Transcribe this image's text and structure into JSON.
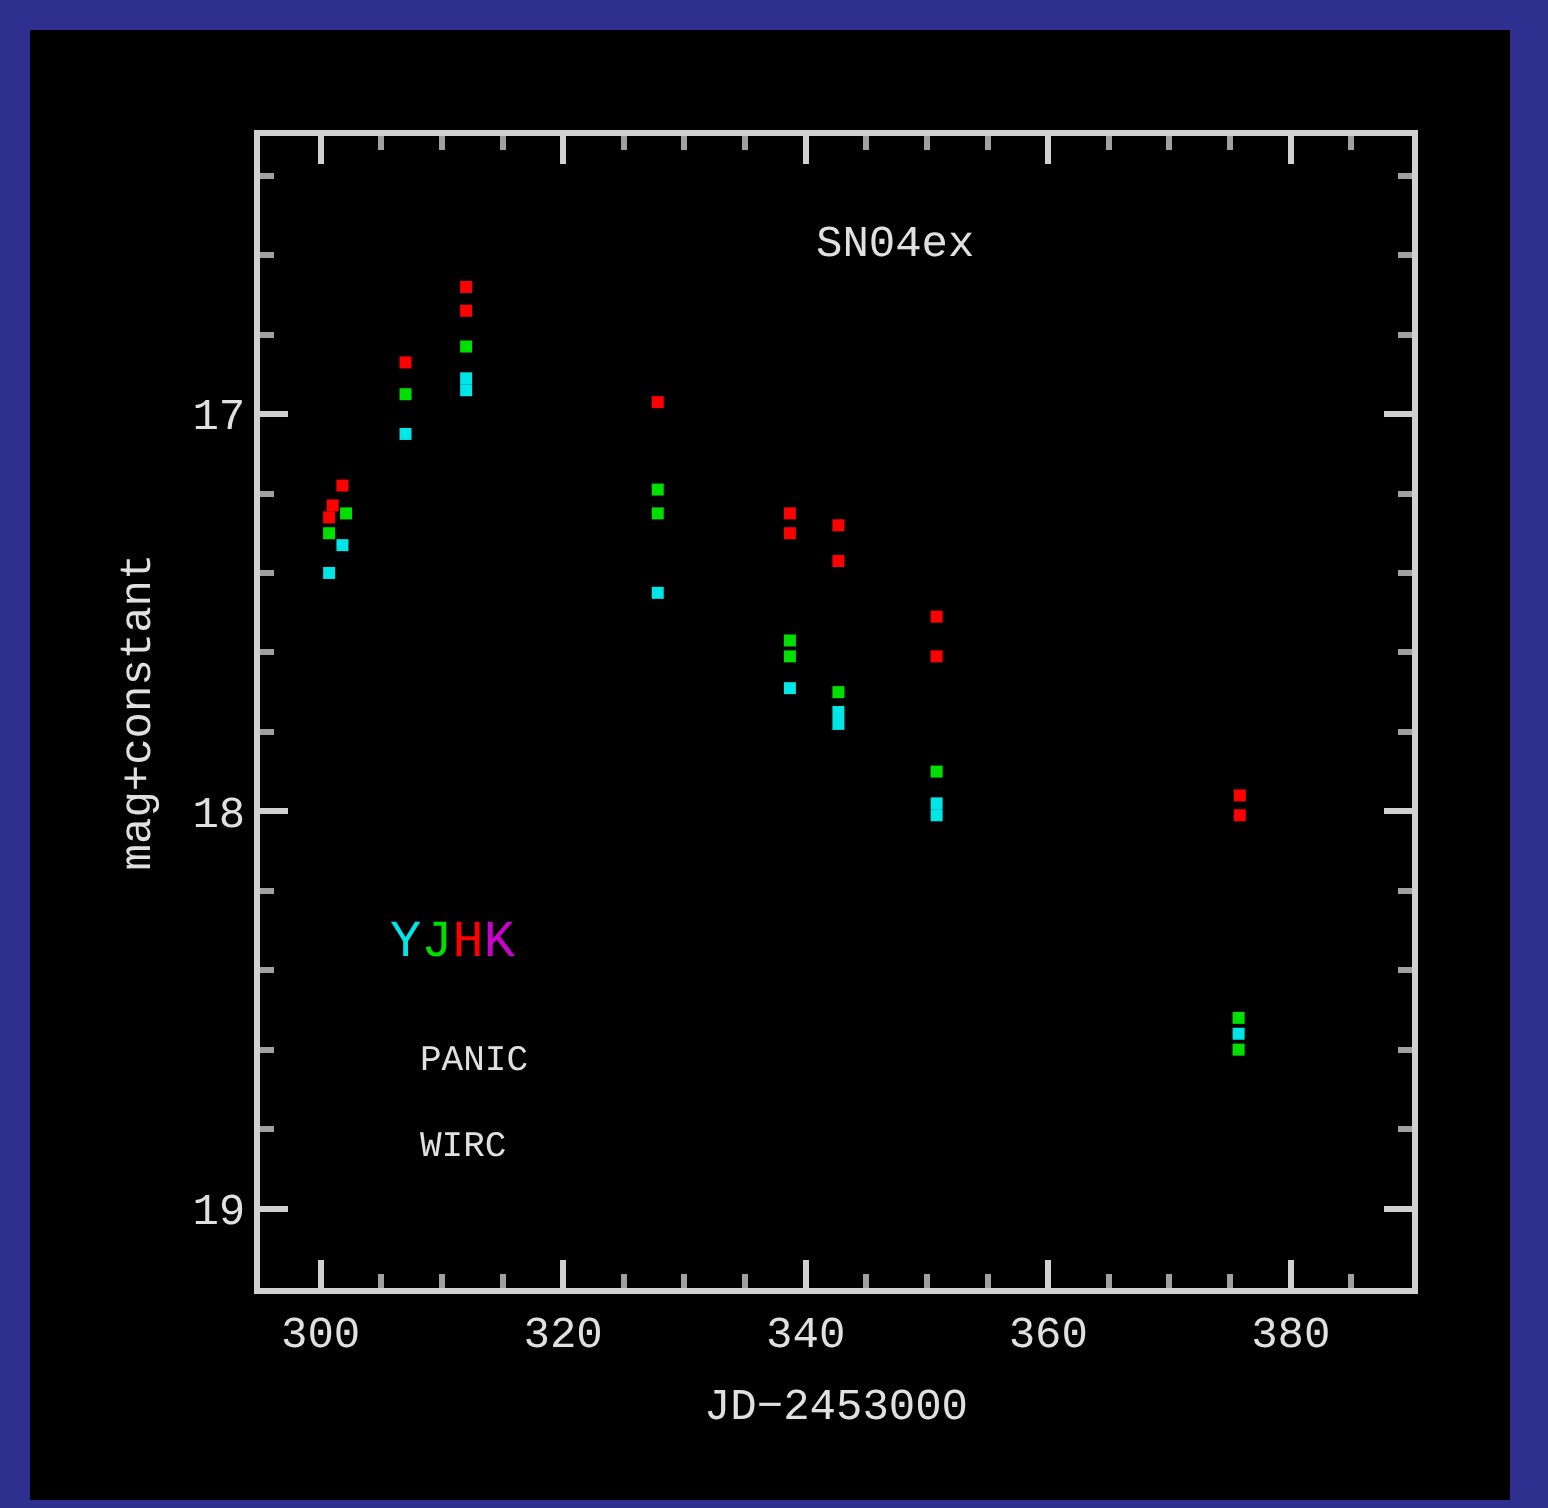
{
  "chart_data": {
    "type": "scatter",
    "title": "SN04ex",
    "xlabel": "JD−2453000",
    "ylabel": "mag+constant",
    "xlim": [
      295,
      390
    ],
    "ylim": [
      19.2,
      16.3
    ],
    "xticks": [
      300,
      320,
      340,
      360,
      380
    ],
    "yticks": [
      17,
      18,
      19
    ],
    "grid": false,
    "marker": "square",
    "legend": "bottom left",
    "annotations": [
      "PANIC",
      "WIRC"
    ],
    "series": [
      {
        "name": "Y",
        "color": "#00e5e5",
        "x": [
          301.8,
          300.7,
          307.0,
          312.0,
          312.0,
          327.8,
          338.7,
          342.7,
          342.7,
          350.8,
          350.8,
          375.7
        ],
        "values": [
          17.33,
          17.4,
          17.05,
          16.91,
          16.94,
          17.45,
          17.69,
          17.75,
          17.78,
          17.98,
          18.01,
          18.56
        ]
      },
      {
        "name": "J",
        "color": "#00e000",
        "x": [
          302.1,
          300.7,
          307.0,
          312.0,
          327.8,
          327.8,
          338.7,
          338.7,
          342.7,
          350.8,
          375.7,
          375.7
        ],
        "values": [
          17.25,
          17.3,
          16.95,
          16.83,
          17.19,
          17.25,
          17.57,
          17.61,
          17.7,
          17.9,
          18.52,
          18.6
        ]
      },
      {
        "name": "H",
        "color": "#ff0000",
        "x": [
          301.8,
          301.0,
          300.7,
          307.0,
          312.0,
          312.0,
          327.8,
          338.7,
          338.7,
          342.7,
          342.7,
          350.8,
          350.8,
          375.8,
          375.8
        ],
        "values": [
          17.18,
          17.23,
          17.26,
          16.87,
          16.68,
          16.74,
          16.97,
          17.25,
          17.3,
          17.28,
          17.37,
          17.51,
          17.61,
          17.96,
          18.01
        ]
      },
      {
        "name": "K",
        "color": "#cc00cc"
      }
    ]
  }
}
